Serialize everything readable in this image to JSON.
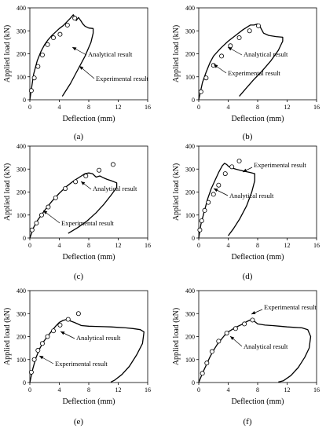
{
  "chart_data": [
    {
      "type": "line",
      "panel_label": "(a)",
      "xlabel": "Deflection (mm)",
      "ylabel": "Applied load (kN)",
      "xlim": [
        0,
        16
      ],
      "ylim": [
        0,
        400
      ],
      "xticks": [
        "0",
        "4",
        "8",
        "12",
        "16"
      ],
      "yticks": [
        "0",
        "100",
        "200",
        "300",
        "400"
      ],
      "series": [
        {
          "name": "Experimental result",
          "marker": "line",
          "x": [
            0,
            0.5,
            1,
            1.5,
            2,
            2.5,
            3,
            3.5,
            4,
            4.5,
            5,
            5.5,
            5.9,
            6.1,
            6.3,
            6.6,
            6.9,
            7.2,
            7.5,
            8,
            8.6,
            8.6,
            8.3,
            7.5,
            6.5,
            5.5,
            4.4
          ],
          "y": [
            0,
            110,
            170,
            210,
            240,
            262,
            280,
            295,
            310,
            322,
            338,
            355,
            370,
            360,
            345,
            358,
            345,
            330,
            320,
            312,
            310,
            290,
            250,
            190,
            130,
            70,
            15
          ]
        },
        {
          "name": "Analytical result",
          "marker": "circle",
          "x": [
            0.2,
            0.6,
            1.1,
            1.7,
            2.4,
            3.2,
            4.1,
            5.1,
            6.1
          ],
          "y": [
            40,
            95,
            145,
            195,
            240,
            270,
            285,
            325,
            355
          ]
        }
      ],
      "annotations": [
        "Analytical result",
        "Experimental result"
      ]
    },
    {
      "type": "line",
      "panel_label": "(b)",
      "xlabel": "Deflection (mm)",
      "ylabel": "Applied load (kN)",
      "xlim": [
        0,
        16
      ],
      "ylim": [
        0,
        400
      ],
      "xticks": [
        "0",
        "4",
        "8",
        "12",
        "16"
      ],
      "yticks": [
        "0",
        "100",
        "200",
        "300",
        "400"
      ],
      "series": [
        {
          "name": "Experimental result",
          "marker": "line",
          "x": [
            0,
            0.5,
            1,
            1.5,
            2,
            3,
            4,
            5,
            6,
            6.5,
            7,
            7.5,
            8,
            8.3,
            8.8,
            9.5,
            10.5,
            11.4,
            11.4,
            10.8,
            9.8,
            8.6,
            7.4,
            6.3,
            5.5
          ],
          "y": [
            0,
            75,
            120,
            160,
            190,
            225,
            255,
            280,
            305,
            315,
            325,
            325,
            330,
            320,
            290,
            280,
            275,
            272,
            255,
            215,
            170,
            125,
            85,
            45,
            15
          ]
        },
        {
          "name": "Analytical result",
          "marker": "circle",
          "x": [
            0.3,
            1,
            2,
            3.1,
            4.3,
            5.5,
            6.9,
            8.1
          ],
          "y": [
            35,
            95,
            150,
            190,
            235,
            270,
            300,
            322
          ]
        }
      ],
      "annotations": [
        "Analytical result",
        "Experimental result"
      ]
    },
    {
      "type": "line",
      "panel_label": "(c)",
      "xlabel": "Deflection (mm)",
      "ylabel": "Applied load (kN)",
      "xlim": [
        0,
        16
      ],
      "ylim": [
        0,
        400
      ],
      "xticks": [
        "0",
        "4",
        "8",
        "12",
        "16"
      ],
      "yticks": [
        "0",
        "100",
        "200",
        "300",
        "400"
      ],
      "series": [
        {
          "name": "Experimental result",
          "marker": "line",
          "x": [
            0,
            0.5,
            1,
            2,
            3,
            4,
            5,
            6,
            7,
            7.5,
            8,
            8.5,
            9,
            9.5,
            10,
            10.5,
            11,
            11.8,
            11.8,
            11,
            10,
            9,
            7.8,
            6.5,
            5.2
          ],
          "y": [
            0,
            45,
            75,
            120,
            160,
            195,
            225,
            250,
            270,
            280,
            283,
            280,
            265,
            270,
            262,
            255,
            250,
            240,
            220,
            185,
            145,
            110,
            75,
            45,
            20
          ]
        },
        {
          "name": "Analytical result",
          "marker": "circle",
          "x": [
            0.3,
            0.9,
            1.6,
            2.5,
            3.5,
            4.8,
            6.2,
            7.6,
            9.4,
            11.3
          ],
          "y": [
            35,
            65,
            100,
            135,
            175,
            215,
            245,
            270,
            295,
            320
          ]
        }
      ],
      "annotations": [
        "Analytical result",
        "Experimental result"
      ]
    },
    {
      "type": "line",
      "panel_label": "(d)",
      "xlabel": "Deflection (mm)",
      "ylabel": "Applied load (kN)",
      "xlim": [
        0,
        16
      ],
      "ylim": [
        0,
        400
      ],
      "xticks": [
        "0",
        "4",
        "8",
        "12",
        "16"
      ],
      "yticks": [
        "0",
        "100",
        "200",
        "300",
        "400"
      ],
      "series": [
        {
          "name": "Experimental result",
          "marker": "line",
          "x": [
            0,
            0.3,
            0.7,
            1.2,
            1.7,
            2.2,
            2.7,
            3.2,
            3.5,
            3.8,
            4.1,
            4.5,
            5,
            5.6,
            6.3,
            7,
            7.6,
            7.6,
            7.2,
            6.5,
            5.6,
            4.7,
            4
          ],
          "y": [
            0,
            60,
            110,
            170,
            215,
            250,
            285,
            315,
            325,
            320,
            310,
            305,
            300,
            295,
            290,
            285,
            280,
            250,
            200,
            140,
            85,
            40,
            10
          ]
        },
        {
          "name": "Analytical result",
          "marker": "circle",
          "x": [
            0.15,
            0.4,
            0.8,
            1.3,
            2,
            2.7,
            3.6,
            4.5,
            5.5
          ],
          "y": [
            35,
            75,
            120,
            155,
            190,
            230,
            280,
            310,
            335
          ]
        }
      ],
      "annotations": [
        "Experimental result",
        "Analytical result"
      ]
    },
    {
      "type": "line",
      "panel_label": "(e)",
      "xlabel": "Deflection (mm)",
      "ylabel": "Applied load (kN)",
      "xlim": [
        0,
        16
      ],
      "ylim": [
        0,
        400
      ],
      "xticks": [
        "0",
        "4",
        "8",
        "12",
        "16"
      ],
      "yticks": [
        "0",
        "100",
        "200",
        "300",
        "400"
      ],
      "series": [
        {
          "name": "Experimental result",
          "marker": "line",
          "x": [
            0,
            0.4,
            0.8,
            1.3,
            1.8,
            2.5,
            3,
            3.5,
            4,
            4.5,
            5,
            5.5,
            6,
            6.5,
            7,
            8,
            9,
            10,
            11,
            12,
            13,
            14,
            15,
            15.5,
            15.3,
            14.5,
            13.5,
            12.5,
            11.5,
            11
          ],
          "y": [
            0,
            60,
            105,
            145,
            175,
            205,
            225,
            245,
            262,
            270,
            275,
            268,
            262,
            255,
            248,
            245,
            244,
            243,
            242,
            240,
            238,
            235,
            230,
            220,
            170,
            120,
            70,
            35,
            10,
            2
          ]
        },
        {
          "name": "Analytical result",
          "marker": "circle",
          "x": [
            0.2,
            0.6,
            1.1,
            1.7,
            2.4,
            3.2,
            4.1,
            5.2,
            6.6
          ],
          "y": [
            45,
            100,
            140,
            170,
            200,
            225,
            250,
            275,
            300
          ]
        }
      ],
      "annotations": [
        "Analytical result",
        "Experimental result"
      ]
    },
    {
      "type": "line",
      "panel_label": "(f)",
      "xlabel": "Deflection (mm)",
      "ylabel": "Applied load (kN)",
      "xlim": [
        0,
        16
      ],
      "ylim": [
        0,
        400
      ],
      "xticks": [
        "0",
        "4",
        "8",
        "12",
        "16"
      ],
      "yticks": [
        "0",
        "100",
        "200",
        "300",
        "400"
      ],
      "series": [
        {
          "name": "Experimental result",
          "marker": "line",
          "x": [
            0,
            0.5,
            1,
            1.5,
            2,
            2.5,
            3,
            3.5,
            4,
            5,
            6,
            6.5,
            7,
            7.5,
            8,
            9,
            10,
            11,
            12,
            13,
            14,
            14.8,
            15.2,
            15,
            14.4,
            13.5,
            12.5,
            11.5,
            10.8
          ],
          "y": [
            0,
            40,
            75,
            110,
            140,
            165,
            185,
            205,
            220,
            240,
            255,
            265,
            272,
            268,
            255,
            250,
            248,
            245,
            242,
            240,
            238,
            230,
            200,
            150,
            110,
            65,
            30,
            8,
            2
          ]
        },
        {
          "name": "Analytical result",
          "marker": "circle",
          "x": [
            0.5,
            1.1,
            1.8,
            2.7,
            3.8,
            5,
            6.2,
            7.3
          ],
          "y": [
            40,
            85,
            135,
            180,
            215,
            235,
            255,
            272
          ]
        }
      ],
      "annotations": [
        "Experimental result",
        "Analytical result"
      ]
    }
  ]
}
